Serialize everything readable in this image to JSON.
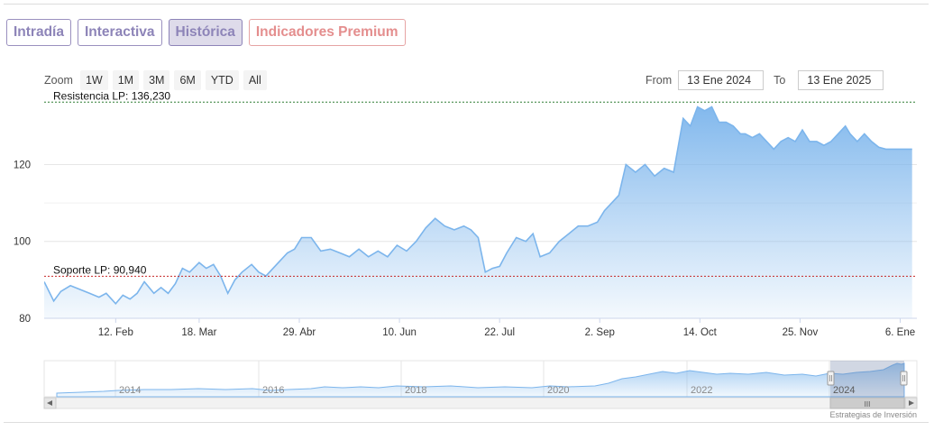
{
  "tabs": [
    {
      "label": "Intradía",
      "active": false
    },
    {
      "label": "Interactiva",
      "active": false
    },
    {
      "label": "Histórica",
      "active": true
    },
    {
      "label": "Indicadores Premium",
      "active": false
    }
  ],
  "range_selector": {
    "zoom_label": "Zoom",
    "buttons": [
      "1W",
      "1M",
      "3M",
      "6M",
      "YTD",
      "All"
    ],
    "from_label": "From",
    "from_value": "13 Ene 2024",
    "to_label": "To",
    "to_value": "13 Ene 2025"
  },
  "navigator": {
    "year_labels": [
      "2014",
      "2016",
      "2018",
      "2020",
      "2022",
      "2024"
    ],
    "scroll_grip": "III"
  },
  "credits": "Estrategias de Inversión",
  "colors": {
    "line": "#7cb5ec",
    "resistance": "#2e7d32",
    "support": "#c62828",
    "tab_text": "#8d84b8",
    "premium_text": "#e48e8e"
  },
  "chart_data": {
    "type": "area",
    "xlim": [
      "2024-01-13",
      "2025-01-13"
    ],
    "ylim": [
      80,
      137
    ],
    "yticks": [
      80,
      100,
      120
    ],
    "ytick_labels": [
      "80",
      "100",
      "120"
    ],
    "xticks": [
      "2024-02-12",
      "2024-03-18",
      "2024-04-29",
      "2024-06-10",
      "2024-07-22",
      "2024-09-02",
      "2024-10-14",
      "2024-11-25",
      "2025-01-06"
    ],
    "xtick_labels": [
      "12. Feb",
      "18. Mar",
      "29. Abr",
      "10. Jun",
      "22. Jul",
      "2. Sep",
      "14. Oct",
      "25. Nov",
      "6. Ene"
    ],
    "plot_lines": [
      {
        "label": "Resistencia LP: 136,230",
        "value": 136.23,
        "style": "dashed",
        "color": "#2e7d32"
      },
      {
        "label": "Soporte LP: 90,940",
        "value": 90.94,
        "style": "dashed",
        "color": "#c62828"
      }
    ],
    "grid": true,
    "series": [
      {
        "x": [
          "2024-01-13",
          "2024-01-17",
          "2024-01-20",
          "2024-01-24",
          "2024-01-28",
          "2024-02-01",
          "2024-02-05",
          "2024-02-08",
          "2024-02-12",
          "2024-02-15",
          "2024-02-18",
          "2024-02-21",
          "2024-02-24",
          "2024-02-28",
          "2024-03-02",
          "2024-03-05",
          "2024-03-08",
          "2024-03-11",
          "2024-03-14",
          "2024-03-18",
          "2024-03-21",
          "2024-03-24",
          "2024-03-27",
          "2024-03-30",
          "2024-04-02",
          "2024-04-05",
          "2024-04-09",
          "2024-04-12",
          "2024-04-15",
          "2024-04-18",
          "2024-04-21",
          "2024-04-24",
          "2024-04-27",
          "2024-04-30",
          "2024-05-04",
          "2024-05-08",
          "2024-05-12",
          "2024-05-16",
          "2024-05-20",
          "2024-05-24",
          "2024-05-28",
          "2024-06-01",
          "2024-06-05",
          "2024-06-09",
          "2024-06-13",
          "2024-06-17",
          "2024-06-21",
          "2024-06-25",
          "2024-06-29",
          "2024-07-03",
          "2024-07-07",
          "2024-07-10",
          "2024-07-13",
          "2024-07-16",
          "2024-07-19",
          "2024-07-22",
          "2024-07-25",
          "2024-07-29",
          "2024-08-02",
          "2024-08-05",
          "2024-08-08",
          "2024-08-12",
          "2024-08-16",
          "2024-08-20",
          "2024-08-24",
          "2024-08-28",
          "2024-09-01",
          "2024-09-04",
          "2024-09-07",
          "2024-09-10",
          "2024-09-13",
          "2024-09-17",
          "2024-09-21",
          "2024-09-25",
          "2024-09-29",
          "2024-10-03",
          "2024-10-07",
          "2024-10-10",
          "2024-10-13",
          "2024-10-16",
          "2024-10-19",
          "2024-10-22",
          "2024-10-25",
          "2024-10-28",
          "2024-10-31",
          "2024-11-02",
          "2024-11-05",
          "2024-11-08",
          "2024-11-11",
          "2024-11-14",
          "2024-11-17",
          "2024-11-20",
          "2024-11-23",
          "2024-11-26",
          "2024-11-29",
          "2024-12-02",
          "2024-12-05",
          "2024-12-08",
          "2024-12-11",
          "2024-12-14",
          "2024-12-16",
          "2024-12-19",
          "2024-12-22",
          "2024-12-25",
          "2024-12-28",
          "2024-12-31",
          "2025-01-03",
          "2025-01-06",
          "2025-01-09",
          "2025-01-11"
        ],
        "y": [
          89.5,
          84.5,
          87,
          88.5,
          87.5,
          86.5,
          85.5,
          86.5,
          83.8,
          86,
          85,
          86.5,
          89.5,
          86.5,
          88,
          86.5,
          89,
          93,
          92,
          94.5,
          93,
          94,
          91,
          86.5,
          90,
          92,
          94,
          92,
          91,
          93,
          95,
          97,
          98,
          101,
          101,
          97.5,
          98,
          97,
          96,
          98,
          96,
          97.5,
          96,
          99,
          97.5,
          100,
          103.5,
          106,
          104,
          103,
          104,
          103,
          101,
          92,
          93,
          93.5,
          97,
          101,
          100,
          102,
          96,
          97,
          100,
          102,
          104,
          104,
          105,
          108,
          110,
          112,
          120,
          118,
          120,
          117,
          119,
          118,
          132,
          130,
          135,
          134,
          135,
          131,
          131,
          130,
          128,
          128,
          127,
          128,
          126,
          124,
          126,
          127,
          126,
          129,
          126,
          126,
          125,
          126,
          128,
          130,
          128,
          126,
          128,
          126,
          124.5,
          124,
          124,
          124,
          124,
          124
        ]
      }
    ]
  }
}
